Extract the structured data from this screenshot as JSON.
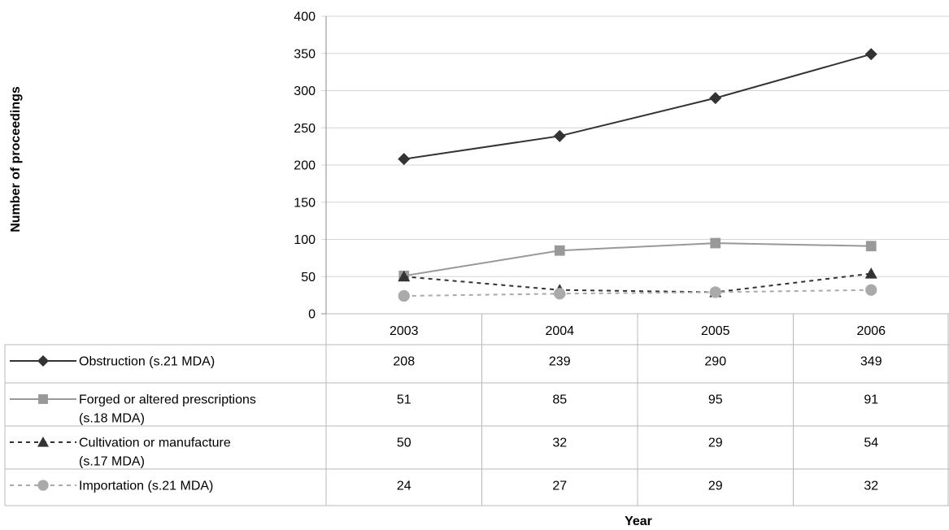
{
  "chart_data": {
    "type": "line",
    "title": "",
    "xlabel": "Year",
    "ylabel": "Number of proceedings",
    "ylim": [
      0,
      400
    ],
    "yticks": [
      0,
      50,
      100,
      150,
      200,
      250,
      300,
      350,
      400
    ],
    "grid": true,
    "legend": "data-table",
    "categories": [
      "2003",
      "2004",
      "2005",
      "2006"
    ],
    "series": [
      {
        "name": "Obstruction (s.21 MDA)",
        "label_lines": [
          "Obstruction (s.21 MDA)"
        ],
        "values": [
          208,
          239,
          290,
          349
        ],
        "color": "#333333",
        "marker": "diamond",
        "dash": "solid"
      },
      {
        "name": "Forged or altered prescriptions (s.18 MDA)",
        "label_lines": [
          "Forged or altered prescriptions",
          "(s.18 MDA)"
        ],
        "values": [
          51,
          85,
          95,
          91
        ],
        "color": "#999999",
        "marker": "square",
        "dash": "solid"
      },
      {
        "name": "Cultivation or manufacture (s.17 MDA)",
        "label_lines": [
          "Cultivation or manufacture",
          "(s.17 MDA)"
        ],
        "values": [
          50,
          32,
          29,
          54
        ],
        "color": "#333333",
        "marker": "triangle",
        "dash": "dashed"
      },
      {
        "name": "Importation (s.21 MDA)",
        "label_lines": [
          "Importation (s.21 MDA)"
        ],
        "values": [
          24,
          27,
          29,
          32
        ],
        "color": "#aaaaaa",
        "marker": "circle",
        "dash": "dashed"
      }
    ]
  }
}
